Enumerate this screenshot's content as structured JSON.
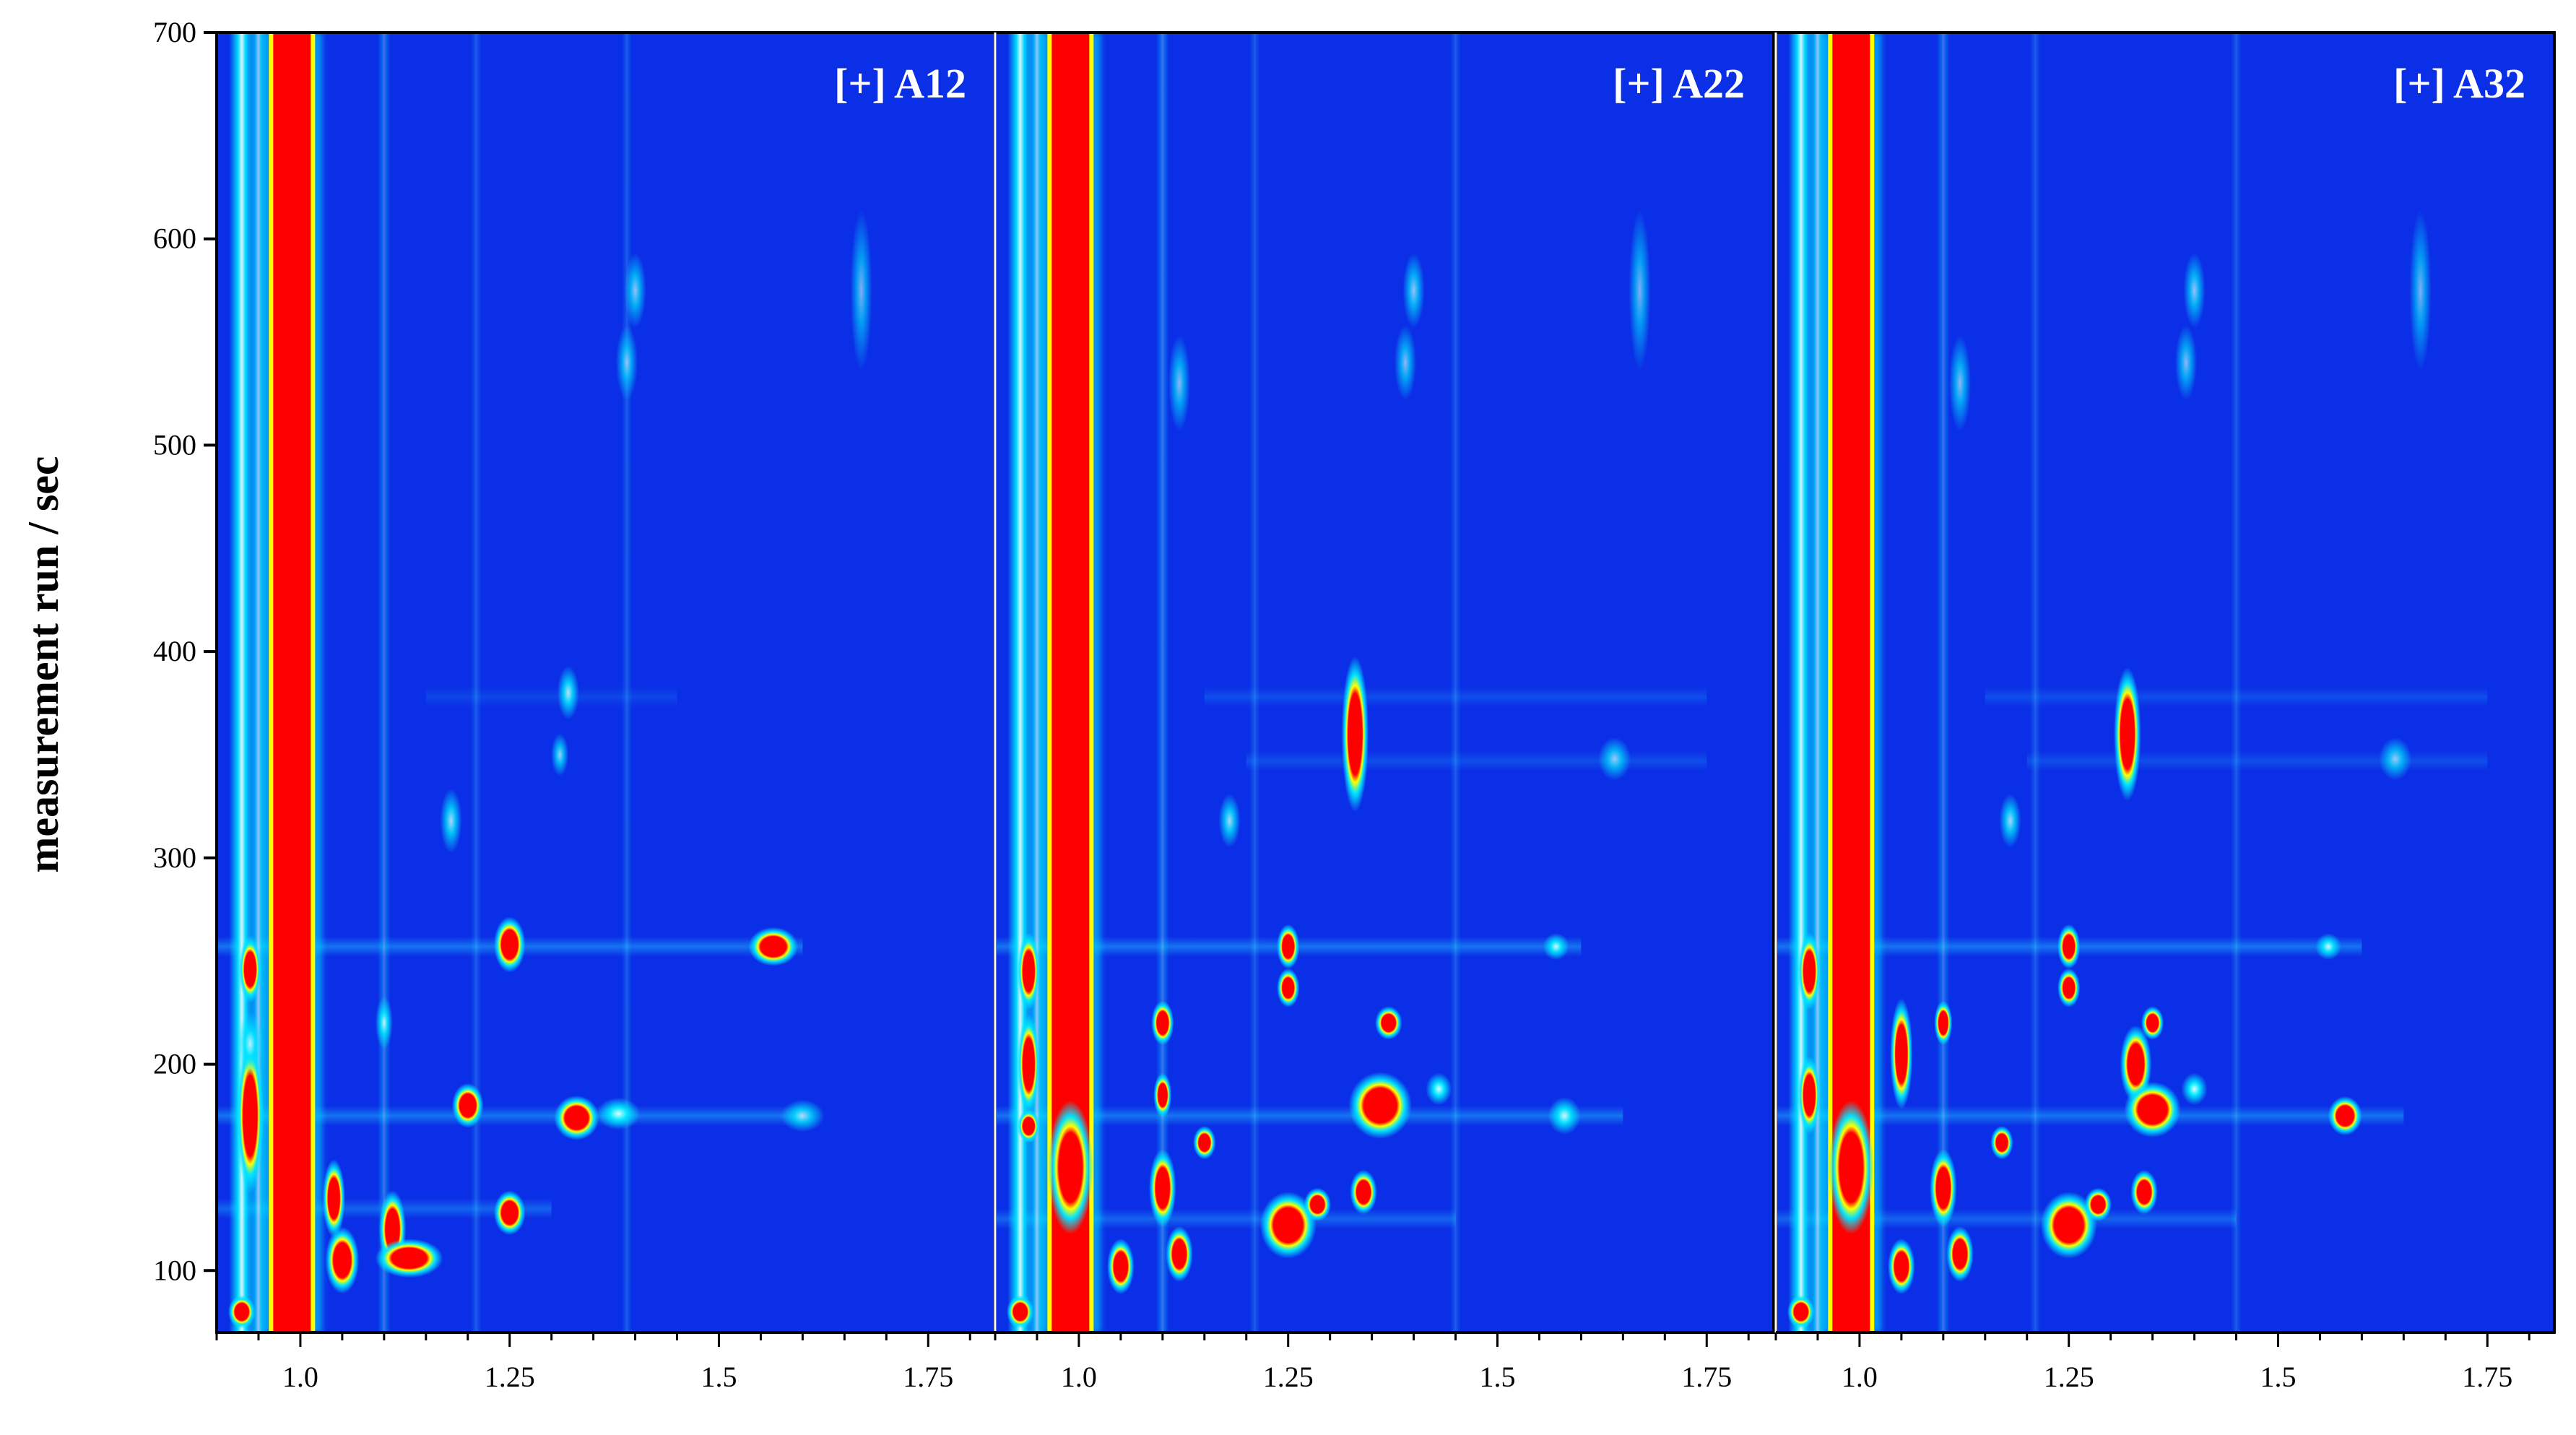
{
  "chart_data": {
    "type": "heatmap",
    "ylabel": "measurement run / sec",
    "xlabel": "",
    "ylim": [
      70,
      700
    ],
    "xlim": [
      0.9,
      1.83
    ],
    "yticks": [
      100,
      200,
      300,
      400,
      500,
      600,
      700
    ],
    "xticks": [
      1.0,
      1.25,
      1.5,
      1.75
    ],
    "ytick_labels": [
      "100",
      "200",
      "300",
      "400",
      "500",
      "600",
      "700"
    ],
    "xtick_labels": [
      "1.0",
      "1.25",
      "1.5",
      "1.75"
    ],
    "colors": {
      "background": "#0b2fe6",
      "low": "#1e90ff",
      "mid": "#00e5ff",
      "high_edge": "#ffff00",
      "high": "#ff0000"
    },
    "panels": [
      {
        "label": "[+] A12",
        "reactant_x": 0.99,
        "streaks": [
          {
            "x": 0.93,
            "y0": 70,
            "y1": 700,
            "strength": 0.95
          },
          {
            "x": 0.95,
            "y0": 70,
            "y1": 700,
            "strength": 0.7
          },
          {
            "x": 1.1,
            "y0": 70,
            "y1": 700,
            "strength": 0.3
          },
          {
            "x": 1.21,
            "y0": 70,
            "y1": 700,
            "strength": 0.18
          },
          {
            "x": 1.39,
            "y0": 70,
            "y1": 700,
            "strength": 0.18
          }
        ],
        "hbands": [
          {
            "y": 257,
            "x0": 0.9,
            "x1": 1.6,
            "strength": 0.45
          },
          {
            "y": 175,
            "x0": 0.9,
            "x1": 1.6,
            "strength": 0.45
          },
          {
            "y": 130,
            "x0": 0.9,
            "x1": 1.3,
            "strength": 0.35
          },
          {
            "y": 378,
            "x0": 1.15,
            "x1": 1.45,
            "strength": 0.15
          }
        ],
        "peaks": [
          {
            "x": 0.94,
            "y": 175,
            "intensity": 1.0,
            "w": 0.012,
            "h": 28
          },
          {
            "x": 0.94,
            "y": 246,
            "intensity": 0.8,
            "w": 0.01,
            "h": 12
          },
          {
            "x": 0.94,
            "y": 210,
            "intensity": 0.6,
            "w": 0.012,
            "h": 12
          },
          {
            "x": 0.93,
            "y": 80,
            "intensity": 0.8,
            "w": 0.012,
            "h": 6
          },
          {
            "x": 1.04,
            "y": 135,
            "intensity": 0.85,
            "w": 0.01,
            "h": 14
          },
          {
            "x": 1.05,
            "y": 105,
            "intensity": 1.0,
            "w": 0.015,
            "h": 12
          },
          {
            "x": 1.11,
            "y": 120,
            "intensity": 1.0,
            "w": 0.012,
            "h": 14
          },
          {
            "x": 1.13,
            "y": 106,
            "intensity": 1.0,
            "w": 0.03,
            "h": 7
          },
          {
            "x": 1.25,
            "y": 258,
            "intensity": 1.0,
            "w": 0.014,
            "h": 10
          },
          {
            "x": 1.25,
            "y": 128,
            "intensity": 0.8,
            "w": 0.014,
            "h": 8
          },
          {
            "x": 1.2,
            "y": 180,
            "intensity": 0.95,
            "w": 0.014,
            "h": 8
          },
          {
            "x": 1.33,
            "y": 174,
            "intensity": 1.0,
            "w": 0.02,
            "h": 8
          },
          {
            "x": 1.38,
            "y": 176,
            "intensity": 0.75,
            "w": 0.02,
            "h": 6
          },
          {
            "x": 1.565,
            "y": 257,
            "intensity": 1.0,
            "w": 0.022,
            "h": 7
          },
          {
            "x": 1.1,
            "y": 220,
            "intensity": 0.65,
            "w": 0.008,
            "h": 10
          },
          {
            "x": 1.18,
            "y": 318,
            "intensity": 0.55,
            "w": 0.01,
            "h": 12
          },
          {
            "x": 1.32,
            "y": 380,
            "intensity": 0.6,
            "w": 0.01,
            "h": 10
          },
          {
            "x": 1.31,
            "y": 350,
            "intensity": 0.5,
            "w": 0.008,
            "h": 8
          },
          {
            "x": 1.4,
            "y": 575,
            "intensity": 0.45,
            "w": 0.01,
            "h": 14
          },
          {
            "x": 1.39,
            "y": 540,
            "intensity": 0.4,
            "w": 0.01,
            "h": 14
          },
          {
            "x": 1.67,
            "y": 575,
            "intensity": 0.35,
            "w": 0.01,
            "h": 30
          },
          {
            "x": 1.6,
            "y": 175,
            "intensity": 0.55,
            "w": 0.02,
            "h": 6
          }
        ]
      },
      {
        "label": "[+] A22",
        "reactant_x": 0.99,
        "streaks": [
          {
            "x": 0.93,
            "y0": 70,
            "y1": 700,
            "strength": 0.95
          },
          {
            "x": 0.95,
            "y0": 70,
            "y1": 700,
            "strength": 0.7
          },
          {
            "x": 1.1,
            "y0": 70,
            "y1": 700,
            "strength": 0.3
          },
          {
            "x": 1.21,
            "y0": 70,
            "y1": 700,
            "strength": 0.18
          },
          {
            "x": 1.45,
            "y0": 70,
            "y1": 700,
            "strength": 0.18
          }
        ],
        "hbands": [
          {
            "y": 257,
            "x0": 0.9,
            "x1": 1.6,
            "strength": 0.45
          },
          {
            "y": 175,
            "x0": 0.9,
            "x1": 1.65,
            "strength": 0.45
          },
          {
            "y": 125,
            "x0": 0.9,
            "x1": 1.45,
            "strength": 0.35
          },
          {
            "y": 378,
            "x0": 1.15,
            "x1": 1.75,
            "strength": 0.2
          },
          {
            "y": 347,
            "x0": 1.2,
            "x1": 1.75,
            "strength": 0.2
          }
        ],
        "peaks": [
          {
            "x": 0.94,
            "y": 245,
            "intensity": 1.0,
            "w": 0.01,
            "h": 14
          },
          {
            "x": 0.94,
            "y": 200,
            "intensity": 1.0,
            "w": 0.01,
            "h": 18
          },
          {
            "x": 0.94,
            "y": 170,
            "intensity": 0.9,
            "w": 0.01,
            "h": 6
          },
          {
            "x": 0.93,
            "y": 80,
            "intensity": 0.8,
            "w": 0.012,
            "h": 6
          },
          {
            "x": 0.99,
            "y": 150,
            "intensity": 1.0,
            "w": 0.02,
            "h": 24
          },
          {
            "x": 1.05,
            "y": 102,
            "intensity": 1.0,
            "w": 0.012,
            "h": 10
          },
          {
            "x": 1.1,
            "y": 220,
            "intensity": 1.0,
            "w": 0.01,
            "h": 8
          },
          {
            "x": 1.1,
            "y": 185,
            "intensity": 0.8,
            "w": 0.008,
            "h": 8
          },
          {
            "x": 1.1,
            "y": 140,
            "intensity": 1.0,
            "w": 0.012,
            "h": 14
          },
          {
            "x": 1.12,
            "y": 108,
            "intensity": 1.0,
            "w": 0.012,
            "h": 10
          },
          {
            "x": 1.15,
            "y": 162,
            "intensity": 0.9,
            "w": 0.01,
            "h": 6
          },
          {
            "x": 1.25,
            "y": 122,
            "intensity": 1.0,
            "w": 0.025,
            "h": 12
          },
          {
            "x": 1.285,
            "y": 132,
            "intensity": 0.9,
            "w": 0.012,
            "h": 6
          },
          {
            "x": 1.34,
            "y": 138,
            "intensity": 1.0,
            "w": 0.012,
            "h": 8
          },
          {
            "x": 1.36,
            "y": 180,
            "intensity": 1.0,
            "w": 0.028,
            "h": 12
          },
          {
            "x": 1.25,
            "y": 257,
            "intensity": 1.0,
            "w": 0.01,
            "h": 8
          },
          {
            "x": 1.25,
            "y": 237,
            "intensity": 0.85,
            "w": 0.01,
            "h": 7
          },
          {
            "x": 1.33,
            "y": 360,
            "intensity": 0.85,
            "w": 0.012,
            "h": 28
          },
          {
            "x": 1.43,
            "y": 188,
            "intensity": 0.75,
            "w": 0.012,
            "h": 6
          },
          {
            "x": 1.37,
            "y": 220,
            "intensity": 0.8,
            "w": 0.012,
            "h": 6
          },
          {
            "x": 1.57,
            "y": 257,
            "intensity": 0.7,
            "w": 0.012,
            "h": 5
          },
          {
            "x": 1.58,
            "y": 175,
            "intensity": 0.7,
            "w": 0.015,
            "h": 7
          },
          {
            "x": 1.64,
            "y": 348,
            "intensity": 0.45,
            "w": 0.015,
            "h": 8
          },
          {
            "x": 1.18,
            "y": 318,
            "intensity": 0.55,
            "w": 0.01,
            "h": 10
          },
          {
            "x": 1.4,
            "y": 575,
            "intensity": 0.45,
            "w": 0.01,
            "h": 14
          },
          {
            "x": 1.39,
            "y": 540,
            "intensity": 0.4,
            "w": 0.01,
            "h": 14
          },
          {
            "x": 1.12,
            "y": 530,
            "intensity": 0.4,
            "w": 0.01,
            "h": 18
          },
          {
            "x": 1.67,
            "y": 575,
            "intensity": 0.35,
            "w": 0.01,
            "h": 30
          }
        ]
      },
      {
        "label": "[+] A32",
        "reactant_x": 0.99,
        "streaks": [
          {
            "x": 0.93,
            "y0": 70,
            "y1": 700,
            "strength": 0.95
          },
          {
            "x": 0.95,
            "y0": 70,
            "y1": 700,
            "strength": 0.7
          },
          {
            "x": 1.1,
            "y0": 70,
            "y1": 700,
            "strength": 0.3
          },
          {
            "x": 1.21,
            "y0": 70,
            "y1": 700,
            "strength": 0.18
          },
          {
            "x": 1.45,
            "y0": 70,
            "y1": 700,
            "strength": 0.18
          }
        ],
        "hbands": [
          {
            "y": 257,
            "x0": 0.9,
            "x1": 1.6,
            "strength": 0.45
          },
          {
            "y": 175,
            "x0": 0.9,
            "x1": 1.65,
            "strength": 0.45
          },
          {
            "y": 125,
            "x0": 0.9,
            "x1": 1.45,
            "strength": 0.35
          },
          {
            "y": 378,
            "x0": 1.15,
            "x1": 1.75,
            "strength": 0.2
          },
          {
            "y": 347,
            "x0": 1.2,
            "x1": 1.75,
            "strength": 0.2
          }
        ],
        "peaks": [
          {
            "x": 0.94,
            "y": 245,
            "intensity": 1.0,
            "w": 0.01,
            "h": 14
          },
          {
            "x": 0.94,
            "y": 185,
            "intensity": 1.0,
            "w": 0.01,
            "h": 14
          },
          {
            "x": 0.93,
            "y": 80,
            "intensity": 0.8,
            "w": 0.012,
            "h": 6
          },
          {
            "x": 0.99,
            "y": 150,
            "intensity": 1.0,
            "w": 0.02,
            "h": 24
          },
          {
            "x": 1.05,
            "y": 205,
            "intensity": 1.0,
            "w": 0.01,
            "h": 20
          },
          {
            "x": 1.05,
            "y": 102,
            "intensity": 1.0,
            "w": 0.012,
            "h": 10
          },
          {
            "x": 1.1,
            "y": 220,
            "intensity": 0.9,
            "w": 0.008,
            "h": 8
          },
          {
            "x": 1.1,
            "y": 140,
            "intensity": 1.0,
            "w": 0.012,
            "h": 14
          },
          {
            "x": 1.12,
            "y": 108,
            "intensity": 1.0,
            "w": 0.012,
            "h": 10
          },
          {
            "x": 1.17,
            "y": 162,
            "intensity": 0.9,
            "w": 0.01,
            "h": 6
          },
          {
            "x": 1.25,
            "y": 122,
            "intensity": 1.0,
            "w": 0.025,
            "h": 12
          },
          {
            "x": 1.285,
            "y": 132,
            "intensity": 0.9,
            "w": 0.012,
            "h": 6
          },
          {
            "x": 1.34,
            "y": 138,
            "intensity": 1.0,
            "w": 0.012,
            "h": 8
          },
          {
            "x": 1.33,
            "y": 200,
            "intensity": 1.0,
            "w": 0.014,
            "h": 14
          },
          {
            "x": 1.35,
            "y": 220,
            "intensity": 0.9,
            "w": 0.01,
            "h": 6
          },
          {
            "x": 1.35,
            "y": 178,
            "intensity": 1.0,
            "w": 0.025,
            "h": 10
          },
          {
            "x": 1.25,
            "y": 257,
            "intensity": 1.0,
            "w": 0.01,
            "h": 8
          },
          {
            "x": 1.25,
            "y": 237,
            "intensity": 0.8,
            "w": 0.01,
            "h": 7
          },
          {
            "x": 1.32,
            "y": 360,
            "intensity": 0.8,
            "w": 0.012,
            "h": 24
          },
          {
            "x": 1.4,
            "y": 188,
            "intensity": 0.75,
            "w": 0.012,
            "h": 6
          },
          {
            "x": 1.56,
            "y": 257,
            "intensity": 0.7,
            "w": 0.012,
            "h": 5
          },
          {
            "x": 1.58,
            "y": 175,
            "intensity": 0.8,
            "w": 0.015,
            "h": 7
          },
          {
            "x": 1.64,
            "y": 348,
            "intensity": 0.45,
            "w": 0.015,
            "h": 8
          },
          {
            "x": 1.18,
            "y": 318,
            "intensity": 0.55,
            "w": 0.01,
            "h": 10
          },
          {
            "x": 1.4,
            "y": 575,
            "intensity": 0.45,
            "w": 0.01,
            "h": 14
          },
          {
            "x": 1.39,
            "y": 540,
            "intensity": 0.4,
            "w": 0.01,
            "h": 14
          },
          {
            "x": 1.12,
            "y": 530,
            "intensity": 0.4,
            "w": 0.01,
            "h": 18
          },
          {
            "x": 1.67,
            "y": 575,
            "intensity": 0.35,
            "w": 0.01,
            "h": 30
          }
        ]
      }
    ]
  }
}
